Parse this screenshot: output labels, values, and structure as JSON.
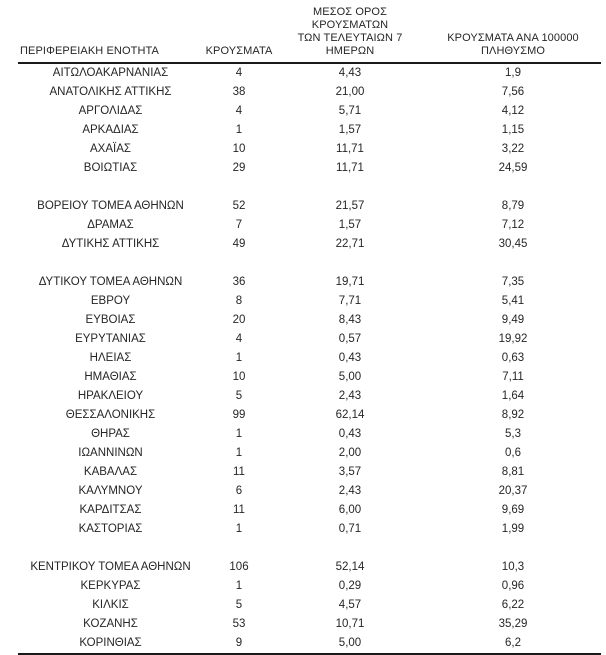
{
  "table": {
    "headers": {
      "region": "ΠΕΡΙΦΕΡΕΙΑΚΗ ΕΝΟΤΗΤΑ",
      "cases": "ΚΡΟΥΣΜΑΤΑ",
      "avg7d_lines": [
        "ΜΕΣΟΣ ΟΡΟΣ ΚΡΟΥΣΜΑΤΩΝ",
        "ΤΩΝ ΤΕΛΕΥΤΑΙΩΝ 7",
        "ΗΜΕΡΩΝ"
      ],
      "per100k_lines": [
        "ΚΡΟΥΣΜΑΤΑ ΑΝΑ 100000",
        "ΠΛΗΘΥΣΜΟ"
      ]
    },
    "rows": [
      [
        "ΑΙΤΩΛΟΑΚΑΡΝΑΝΙΑΣ",
        "4",
        "4,43",
        "1,9"
      ],
      [
        "ΑΝΑΤΟΛΙΚΗΣ ΑΤΤΙΚΗΣ",
        "38",
        "21,00",
        "7,56"
      ],
      [
        "ΑΡΓΟΛΙΔΑΣ",
        "4",
        "5,71",
        "4,12"
      ],
      [
        "ΑΡΚΑΔΙΑΣ",
        "1",
        "1,57",
        "1,15"
      ],
      [
        "ΑΧΑΪΑΣ",
        "10",
        "11,71",
        "3,22"
      ],
      [
        "ΒΟΙΩΤΙΑΣ",
        "29",
        "11,71",
        "24,59"
      ],
      null,
      [
        "ΒΟΡΕΙΟΥ ΤΟΜΕΑ ΑΘΗΝΩΝ",
        "52",
        "21,57",
        "8,79"
      ],
      [
        "ΔΡΑΜΑΣ",
        "7",
        "1,57",
        "7,12"
      ],
      [
        "ΔΥΤΙΚΗΣ ΑΤΤΙΚΗΣ",
        "49",
        "22,71",
        "30,45"
      ],
      null,
      [
        "ΔΥΤΙΚΟΥ ΤΟΜΕΑ ΑΘΗΝΩΝ",
        "36",
        "19,71",
        "7,35"
      ],
      [
        "ΕΒΡΟΥ",
        "8",
        "7,71",
        "5,41"
      ],
      [
        "ΕΥΒΟΙΑΣ",
        "20",
        "8,43",
        "9,49"
      ],
      [
        "ΕΥΡΥΤΑΝΙΑΣ",
        "4",
        "0,57",
        "19,92"
      ],
      [
        "ΗΛΕΙΑΣ",
        "1",
        "0,43",
        "0,63"
      ],
      [
        "ΗΜΑΘΙΑΣ",
        "10",
        "5,00",
        "7,11"
      ],
      [
        "ΗΡΑΚΛΕΙΟΥ",
        "5",
        "2,43",
        "1,64"
      ],
      [
        "ΘΕΣΣΑΛΟΝΙΚΗΣ",
        "99",
        "62,14",
        "8,92"
      ],
      [
        "ΘΗΡΑΣ",
        "1",
        "0,43",
        "5,3"
      ],
      [
        "ΙΩΑΝΝΙΝΩΝ",
        "1",
        "2,00",
        "0,6"
      ],
      [
        "ΚΑΒΑΛΑΣ",
        "11",
        "3,57",
        "8,81"
      ],
      [
        "ΚΑΛΥΜΝΟΥ",
        "6",
        "2,43",
        "20,37"
      ],
      [
        "ΚΑΡΔΙΤΣΑΣ",
        "11",
        "6,00",
        "9,69"
      ],
      [
        "ΚΑΣΤΟΡΙΑΣ",
        "1",
        "0,71",
        "1,99"
      ],
      null,
      [
        "ΚΕΝΤΡΙΚΟΥ ΤΟΜΕΑ ΑΘΗΝΩΝ",
        "106",
        "52,14",
        "10,3"
      ],
      [
        "ΚΕΡΚΥΡΑΣ",
        "1",
        "0,29",
        "0,96"
      ],
      [
        "ΚΙΛΚΙΣ",
        "5",
        "4,57",
        "6,22"
      ],
      [
        "ΚΟΖΑΝΗΣ",
        "53",
        "10,71",
        "35,29"
      ],
      [
        "ΚΟΡΙΝΘΙΑΣ",
        "9",
        "5,00",
        "6,2"
      ]
    ],
    "column_cell_names": [
      "region-cell",
      "cases-cell",
      "avg7d-cell",
      "per100k-cell"
    ]
  }
}
